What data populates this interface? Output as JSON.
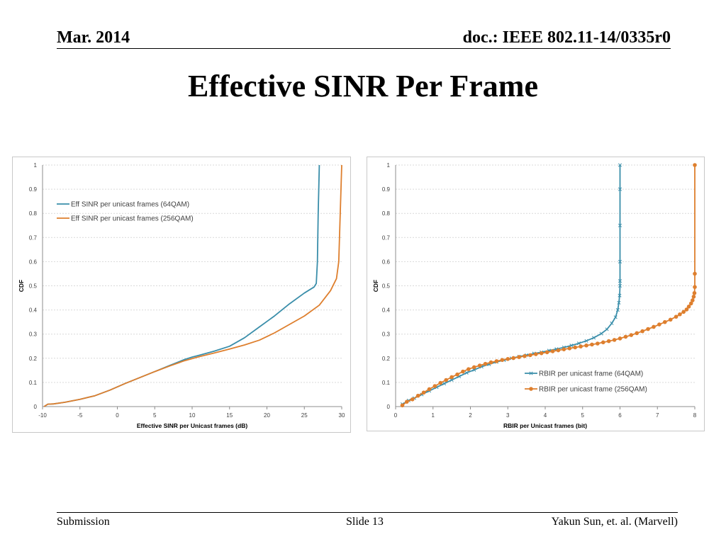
{
  "header": {
    "date": "Mar. 2014",
    "doc": "doc.: IEEE 802.11-14/0335r0"
  },
  "slide": {
    "title": "Effective SINR Per Frame"
  },
  "footer": {
    "left": "Submission",
    "center": "Slide 13",
    "right": "Yakun Sun, et. al. (Marvell)"
  },
  "colors": {
    "series1": "#3a8eaa",
    "series2": "#de7f2e",
    "grid": "#d9d9d9",
    "axis": "#8c8c8c"
  },
  "chart_data": [
    {
      "type": "line",
      "title": "",
      "xlabel": "Effective SINR per Unicast frames (dB)",
      "ylabel": "CDF",
      "xlim": [
        -10,
        30
      ],
      "ylim": [
        0,
        1
      ],
      "xticks": [
        -10,
        -5,
        0,
        5,
        10,
        15,
        20,
        25,
        30
      ],
      "yticks": [
        0,
        0.1,
        0.2,
        0.3,
        0.4,
        0.5,
        0.6,
        0.7,
        0.8,
        0.9,
        1
      ],
      "grid": true,
      "legend": "upper-left",
      "series": [
        {
          "name": "Eff SINR per unicast frames (64QAM)",
          "marker": "none",
          "x": [
            -9.8,
            -9.3,
            -8.5,
            -7,
            -5,
            -3,
            -1,
            1,
            3,
            5,
            7,
            9,
            10,
            11,
            13,
            15,
            17,
            19,
            21,
            23,
            25,
            26.3,
            26.6,
            26.75,
            26.85,
            27
          ],
          "y": [
            0,
            0.01,
            0.011,
            0.018,
            0.03,
            0.045,
            0.068,
            0.095,
            0.12,
            0.145,
            0.17,
            0.195,
            0.205,
            0.213,
            0.23,
            0.25,
            0.285,
            0.33,
            0.375,
            0.425,
            0.47,
            0.495,
            0.51,
            0.6,
            0.8,
            1.0
          ]
        },
        {
          "name": "Eff SINR per unicast frames (256QAM)",
          "marker": "none",
          "x": [
            -9.8,
            -9.3,
            -8.5,
            -7,
            -5,
            -3,
            -1,
            1,
            3,
            5,
            7,
            9,
            11,
            13,
            15,
            17,
            19,
            21,
            23,
            25,
            27,
            28.5,
            29.3,
            29.6,
            29.8,
            30
          ],
          "y": [
            0,
            0.01,
            0.011,
            0.018,
            0.03,
            0.045,
            0.068,
            0.095,
            0.12,
            0.145,
            0.168,
            0.19,
            0.207,
            0.222,
            0.238,
            0.255,
            0.275,
            0.305,
            0.34,
            0.375,
            0.42,
            0.48,
            0.53,
            0.6,
            0.8,
            1.0
          ]
        }
      ]
    },
    {
      "type": "line",
      "title": "",
      "xlabel": "RBIR  per Unicast frames (bit)",
      "ylabel": "CDF",
      "xlim": [
        0,
        8
      ],
      "ylim": [
        0,
        1
      ],
      "xticks": [
        0,
        1,
        2,
        3,
        4,
        5,
        6,
        7,
        8
      ],
      "yticks": [
        0,
        0.1,
        0.2,
        0.3,
        0.4,
        0.5,
        0.6,
        0.7,
        0.8,
        0.9,
        1
      ],
      "grid": true,
      "legend": "lower-right",
      "series": [
        {
          "name": "RBIR per unicast frame (64QAM)",
          "marker": "x",
          "x": [
            0.18,
            0.35,
            0.5,
            0.7,
            0.9,
            1.1,
            1.3,
            1.5,
            1.7,
            1.9,
            2.1,
            2.3,
            2.5,
            2.7,
            2.9,
            3.1,
            3.3,
            3.5,
            3.7,
            3.9,
            4.1,
            4.3,
            4.5,
            4.7,
            4.9,
            5.1,
            5.3,
            5.5,
            5.65,
            5.78,
            5.88,
            5.94,
            5.97,
            5.99,
            6.0,
            6.0,
            6.0,
            6.0,
            6.0,
            6.0
          ],
          "y": [
            0.01,
            0.025,
            0.035,
            0.05,
            0.065,
            0.08,
            0.095,
            0.11,
            0.125,
            0.14,
            0.152,
            0.165,
            0.175,
            0.185,
            0.192,
            0.2,
            0.207,
            0.213,
            0.22,
            0.225,
            0.232,
            0.238,
            0.245,
            0.253,
            0.262,
            0.272,
            0.285,
            0.302,
            0.32,
            0.345,
            0.37,
            0.4,
            0.43,
            0.46,
            0.5,
            0.52,
            0.6,
            0.75,
            0.9,
            1.0
          ]
        },
        {
          "name": "RBIR per unicast frame (256QAM)",
          "marker": "circle",
          "x": [
            0.18,
            0.3,
            0.45,
            0.6,
            0.75,
            0.9,
            1.05,
            1.2,
            1.35,
            1.5,
            1.65,
            1.8,
            1.95,
            2.1,
            2.25,
            2.4,
            2.55,
            2.7,
            2.85,
            3.0,
            3.15,
            3.3,
            3.45,
            3.6,
            3.75,
            3.9,
            4.05,
            4.2,
            4.35,
            4.5,
            4.65,
            4.8,
            4.95,
            5.1,
            5.25,
            5.4,
            5.55,
            5.7,
            5.85,
            6.0,
            6.15,
            6.3,
            6.45,
            6.6,
            6.75,
            6.9,
            7.05,
            7.2,
            7.35,
            7.5,
            7.6,
            7.7,
            7.78,
            7.84,
            7.9,
            7.94,
            7.97,
            7.99,
            8.0,
            8.0,
            8.0
          ],
          "y": [
            0.005,
            0.02,
            0.03,
            0.045,
            0.058,
            0.072,
            0.085,
            0.098,
            0.11,
            0.122,
            0.133,
            0.145,
            0.155,
            0.163,
            0.17,
            0.177,
            0.183,
            0.188,
            0.193,
            0.197,
            0.201,
            0.205,
            0.209,
            0.213,
            0.217,
            0.221,
            0.225,
            0.229,
            0.233,
            0.237,
            0.241,
            0.245,
            0.249,
            0.253,
            0.257,
            0.261,
            0.266,
            0.271,
            0.276,
            0.282,
            0.289,
            0.296,
            0.304,
            0.312,
            0.321,
            0.33,
            0.34,
            0.35,
            0.36,
            0.372,
            0.382,
            0.392,
            0.402,
            0.414,
            0.427,
            0.44,
            0.455,
            0.47,
            0.495,
            0.55,
            1.0
          ]
        }
      ]
    }
  ]
}
